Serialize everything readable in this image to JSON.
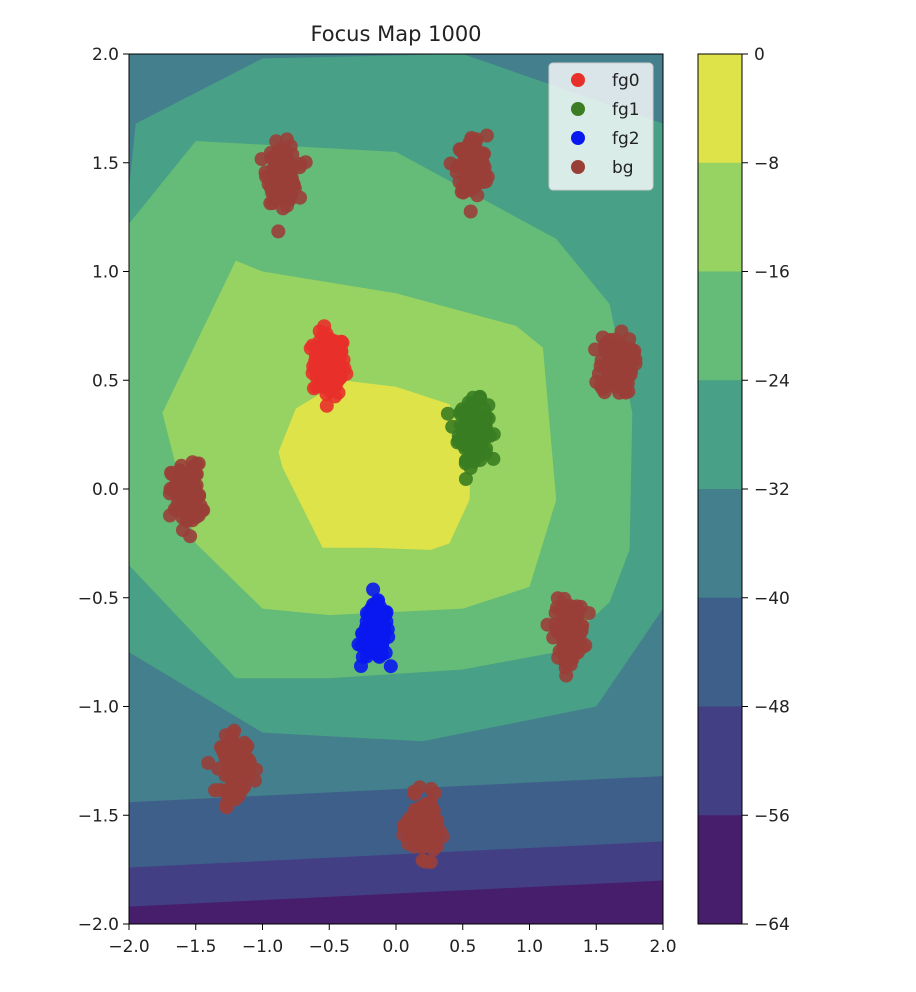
{
  "chart_data": {
    "type": "scatter",
    "title": "Focus Map 1000",
    "xlabel": "",
    "ylabel": "",
    "xlim": [
      -2.0,
      2.0
    ],
    "ylim": [
      -2.0,
      2.0
    ],
    "x_ticks": [
      "−2.0",
      "−1.5",
      "−1.0",
      "−0.5",
      "0.0",
      "0.5",
      "1.0",
      "1.5",
      "2.0"
    ],
    "y_ticks": [
      "2.0",
      "1.5",
      "1.0",
      "0.5",
      "0.0",
      "−0.5",
      "−1.0",
      "−1.5",
      "−2.0"
    ],
    "grid": false,
    "legend_position": "top-right",
    "series": [
      {
        "name": "fg0",
        "color": "#e8302a",
        "center": [
          -0.5,
          0.57
        ],
        "spread": [
          0.11,
          0.13
        ],
        "n_points": 150
      },
      {
        "name": "fg1",
        "color": "#3a7d22",
        "center": [
          0.58,
          0.27
        ],
        "spread": [
          0.1,
          0.12
        ],
        "n_points": 150
      },
      {
        "name": "fg2",
        "color": "#0a18f0",
        "center": [
          -0.15,
          -0.66
        ],
        "spread": [
          0.09,
          0.11
        ],
        "n_points": 150
      },
      {
        "name": "bg",
        "color": "#9a3f38",
        "clusters": [
          {
            "center": [
              -0.85,
              1.45
            ],
            "spread": [
              0.1,
              0.12
            ]
          },
          {
            "center": [
              0.57,
              1.48
            ],
            "spread": [
              0.1,
              0.13
            ]
          },
          {
            "center": [
              1.65,
              0.57
            ],
            "spread": [
              0.11,
              0.12
            ]
          },
          {
            "center": [
              -1.57,
              -0.03
            ],
            "spread": [
              0.1,
              0.13
            ]
          },
          {
            "center": [
              1.3,
              -0.65
            ],
            "spread": [
              0.1,
              0.12
            ]
          },
          {
            "center": [
              -1.2,
              -1.27
            ],
            "spread": [
              0.1,
              0.12
            ]
          },
          {
            "center": [
              0.2,
              -1.55
            ],
            "spread": [
              0.1,
              0.12
            ]
          }
        ],
        "n_points_per_cluster": 120
      }
    ],
    "colorbar": {
      "levels": [
        0,
        -8,
        -16,
        -24,
        -32,
        -40,
        -48,
        -56,
        -64
      ],
      "tick_labels": [
        "0",
        "−8",
        "−16",
        "−24",
        "−32",
        "−40",
        "−48",
        "−56",
        "−64"
      ],
      "colors": [
        "#dfe34a",
        "#97d362",
        "#65bb78",
        "#48a086",
        "#437f8d",
        "#3f5f8b",
        "#433f84",
        "#461e6c"
      ]
    },
    "contour_regions": [
      {
        "level": "[-64,-56)",
        "color": "#461e6c",
        "polygon": [
          [
            -2,
            -2
          ],
          [
            2,
            -2
          ],
          [
            2,
            -1.8
          ],
          [
            -2,
            -1.92
          ]
        ]
      },
      {
        "level": "[-56,-48)",
        "color": "#433f84",
        "polygon": [
          [
            -2,
            -2
          ],
          [
            2,
            -2
          ],
          [
            2,
            -1.62
          ],
          [
            -2,
            -1.74
          ]
        ]
      },
      {
        "level": "[-48,-40)",
        "color": "#3f5f8b",
        "polygon": [
          [
            -2,
            -2
          ],
          [
            2,
            -2
          ],
          [
            2,
            -1.32
          ],
          [
            -2,
            -1.44
          ]
        ]
      },
      {
        "level": "[-40,-32)",
        "color": "#437f8d",
        "polygon": [
          [
            -2,
            -2
          ],
          [
            2,
            -2
          ],
          [
            2,
            2
          ],
          [
            -2,
            2
          ]
        ]
      },
      {
        "level": "[-32,-24)",
        "color": "#48a086",
        "polygon": [
          [
            -2,
            1.38
          ],
          [
            -1.95,
            1.68
          ],
          [
            -1.0,
            1.98
          ],
          [
            0.5,
            2.0
          ],
          [
            2.0,
            1.68
          ],
          [
            2.0,
            -0.55
          ],
          [
            1.5,
            -1.0
          ],
          [
            0.2,
            -1.16
          ],
          [
            -1.0,
            -1.12
          ],
          [
            -2.0,
            -0.75
          ]
        ]
      },
      {
        "level": "[-24,-16)",
        "color": "#65bb78",
        "polygon": [
          [
            -2.0,
            1.22
          ],
          [
            -1.5,
            1.6
          ],
          [
            0.0,
            1.55
          ],
          [
            1.2,
            1.15
          ],
          [
            1.6,
            0.85
          ],
          [
            1.77,
            0.35
          ],
          [
            1.75,
            -0.28
          ],
          [
            1.6,
            -0.52
          ],
          [
            1.2,
            -0.75
          ],
          [
            0.5,
            -0.83
          ],
          [
            -0.5,
            -0.87
          ],
          [
            -1.2,
            -0.87
          ],
          [
            -2.0,
            -0.35
          ]
        ]
      },
      {
        "level": "[-16,-8)",
        "color": "#97d362",
        "polygon": [
          [
            -1.75,
            0.35
          ],
          [
            -1.2,
            1.05
          ],
          [
            -1.0,
            1.0
          ],
          [
            0.0,
            0.9
          ],
          [
            0.9,
            0.75
          ],
          [
            1.1,
            0.65
          ],
          [
            1.2,
            -0.05
          ],
          [
            1.0,
            -0.45
          ],
          [
            0.5,
            -0.55
          ],
          [
            -0.5,
            -0.58
          ],
          [
            -1.0,
            -0.55
          ],
          [
            -1.5,
            -0.25
          ]
        ]
      },
      {
        "level": "[-8,0]",
        "color": "#dfe34a",
        "polygon": [
          [
            -0.88,
            0.17
          ],
          [
            -0.75,
            0.37
          ],
          [
            -0.4,
            0.5
          ],
          [
            0.0,
            0.47
          ],
          [
            0.4,
            0.39
          ],
          [
            0.56,
            0.1
          ],
          [
            0.55,
            -0.05
          ],
          [
            0.4,
            -0.25
          ],
          [
            0.26,
            -0.28
          ],
          [
            -0.2,
            -0.27
          ],
          [
            -0.55,
            -0.27
          ],
          [
            -0.85,
            0.1
          ]
        ]
      }
    ]
  }
}
